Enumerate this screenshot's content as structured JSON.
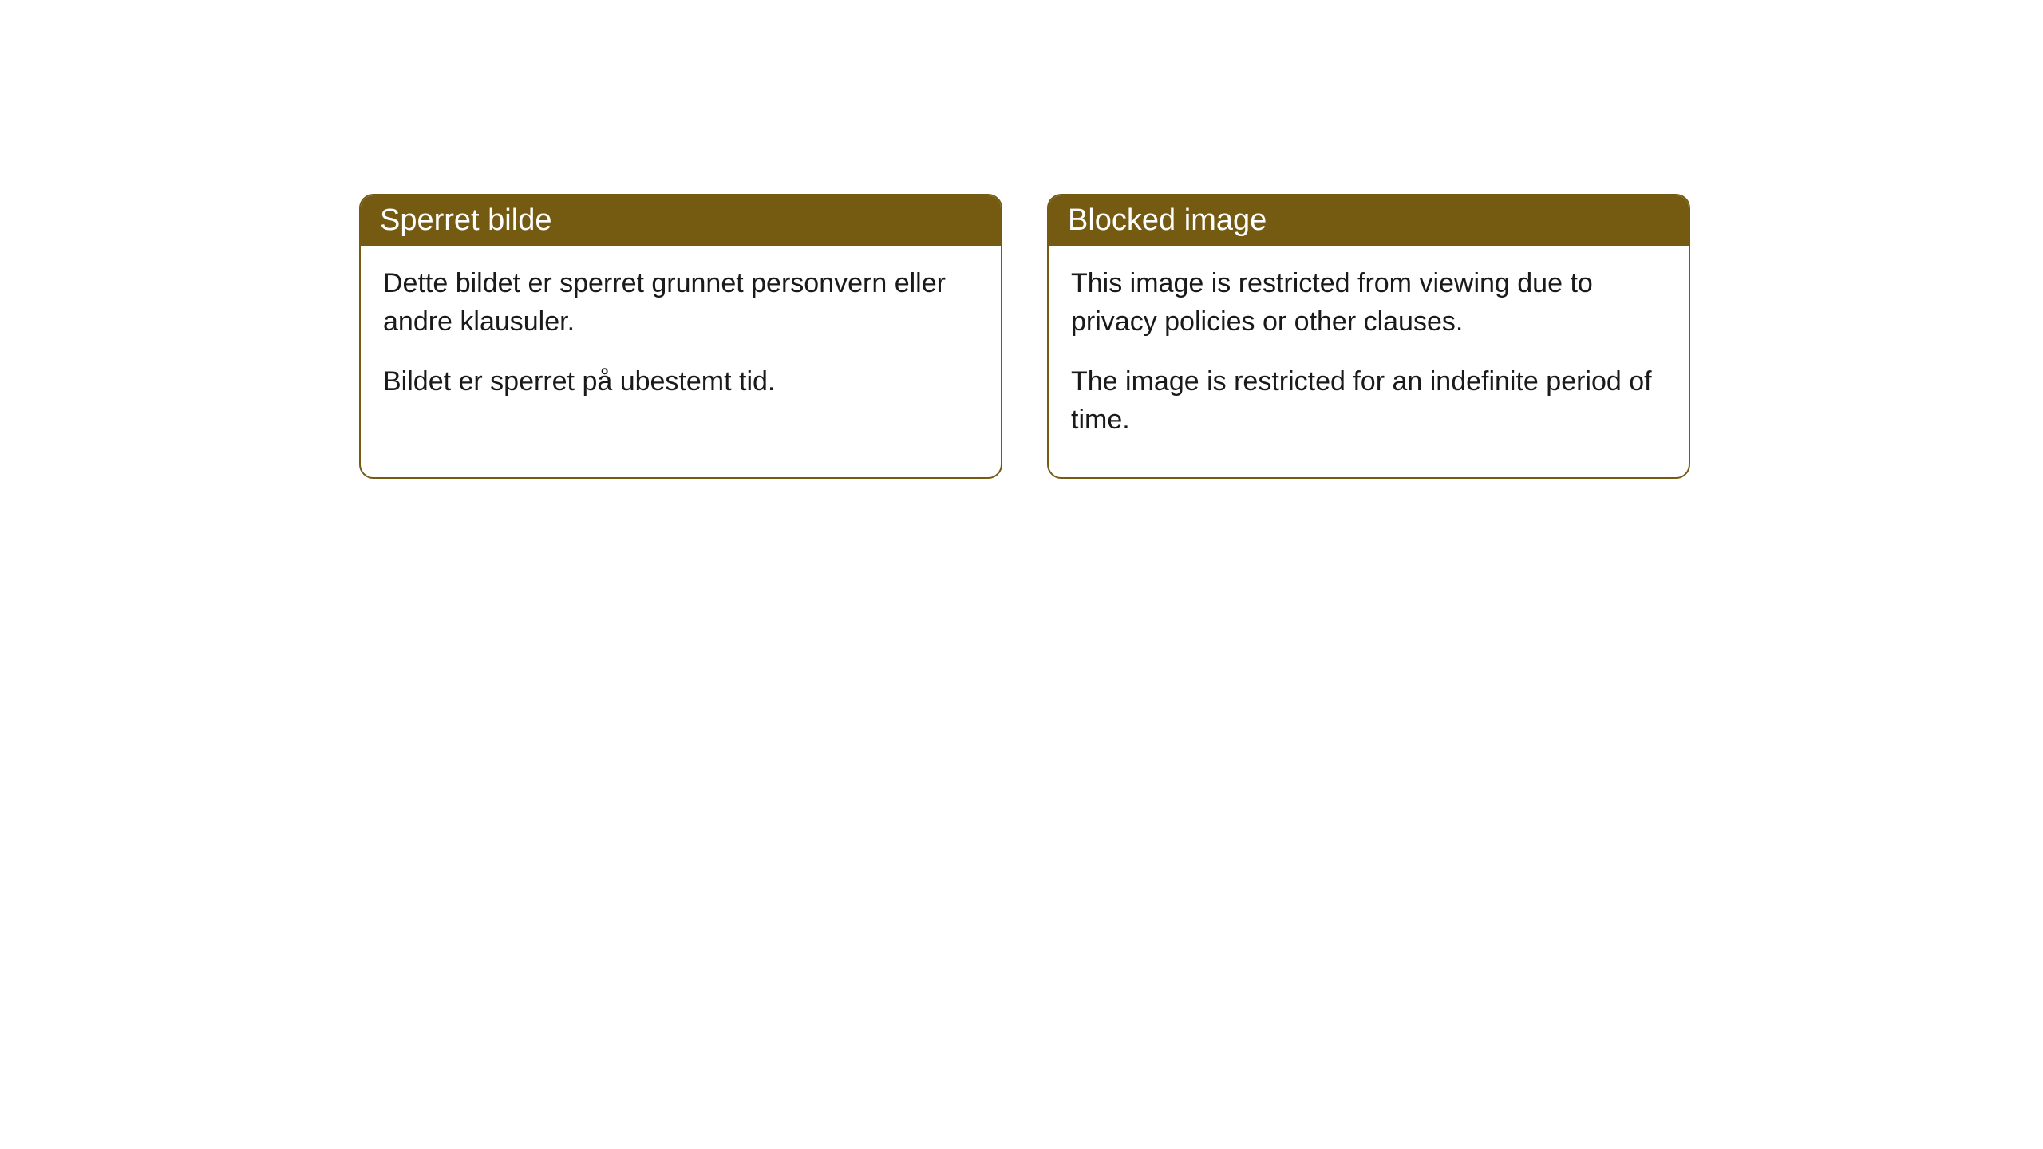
{
  "cards": [
    {
      "title": "Sperret bilde",
      "paragraph1": "Dette bildet er sperret grunnet personvern eller andre klausuler.",
      "paragraph2": "Bildet er sperret på ubestemt tid."
    },
    {
      "title": "Blocked image",
      "paragraph1": "This image is restricted from viewing due to privacy policies or other clauses.",
      "paragraph2": "The image is restricted for an indefinite period of time."
    }
  ],
  "style": {
    "header_bg_color": "#755a11",
    "header_text_color": "#ffffff",
    "border_color": "#755a11",
    "body_bg_color": "#ffffff",
    "body_text_color": "#1a1a1a",
    "border_radius": 18,
    "header_fontsize": 38,
    "body_fontsize": 34
  }
}
